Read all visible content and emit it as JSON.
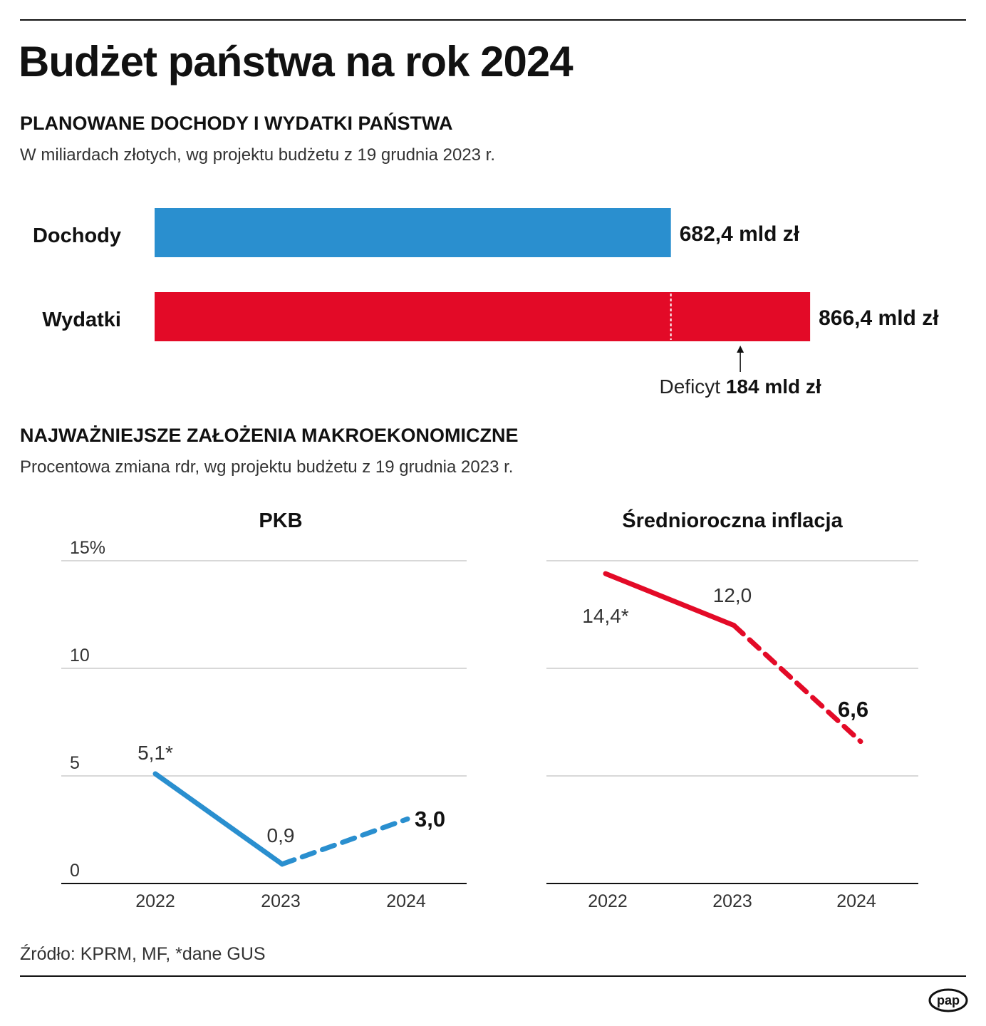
{
  "title": "Budżet państwa na rok 2024",
  "section1": {
    "heading": "PLANOWANE DOCHODY I WYDATKI PAŃSTWA",
    "subtitle": "W miliardach złotych, wg projektu budżetu z 19 grudnia 2023 r."
  },
  "section2": {
    "heading": "NAJWAŻNIEJSZE ZAŁOŻENIA MAKROEKONOMICZNE",
    "subtitle": "Procentowa zmiana rdr, wg projektu budżetu z 19 grudnia 2023 r."
  },
  "source": "Źródło: KPRM, MF, *dane GUS",
  "logo": "pap",
  "colors": {
    "blue": "#2a8fcf",
    "red": "#e30a27"
  },
  "chart_data": [
    {
      "type": "bar",
      "orientation": "horizontal",
      "categories": [
        "Dochody",
        "Wydatki"
      ],
      "values": [
        682.4,
        866.4
      ],
      "data_labels": [
        "682,4 mld zł",
        "866,4 mld zł"
      ],
      "colors": [
        "#2a8fcf",
        "#e30a27"
      ],
      "annotation": {
        "label": "Deficyt",
        "value_label": "184 mld zł",
        "value": 184
      }
    },
    {
      "type": "line",
      "title": "PKB",
      "x": [
        "2022",
        "2023",
        "2024"
      ],
      "values": [
        5.1,
        0.9,
        3.0
      ],
      "data_labels": [
        "5,1*",
        "0,9",
        "3,0"
      ],
      "dashed_from": "2023",
      "color": "#2a8fcf",
      "ylim": [
        0,
        15
      ],
      "yticks": [
        0,
        5,
        10,
        15
      ],
      "ytick_labels": [
        "0",
        "5",
        "10",
        "15%"
      ],
      "grid": true
    },
    {
      "type": "line",
      "title": "Średnioroczna inflacja",
      "x": [
        "2022",
        "2023",
        "2024"
      ],
      "values": [
        14.4,
        12.0,
        6.6
      ],
      "data_labels": [
        "14,4*",
        "12,0",
        "6,6"
      ],
      "dashed_from": "2023",
      "color": "#e30a27",
      "ylim": [
        0,
        15
      ],
      "grid": true
    }
  ]
}
